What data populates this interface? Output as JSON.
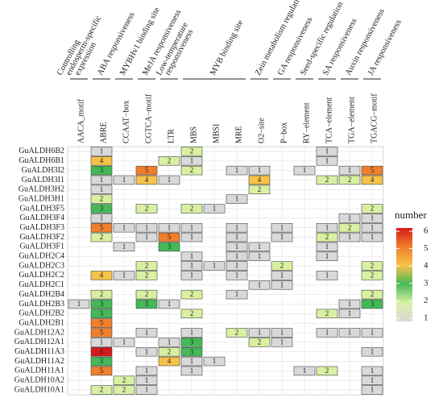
{
  "chart_data": {
    "type": "heatmap",
    "groups": [
      [
        "Controlling",
        "endosperm-specific",
        "expression"
      ],
      [
        "ABA responsiveness"
      ],
      [
        "MYBHv1 binding site"
      ],
      [
        "MeJA responsiveness"
      ],
      [
        "Low-temperature",
        "responsiveness"
      ],
      [
        "MYB binding site"
      ],
      [
        "Zein metabolism regulation"
      ],
      [
        "GA responsiveness"
      ],
      [
        "Seed-specific regulation"
      ],
      [
        "SA responsiveness"
      ],
      [
        "Auxin responsiveness"
      ],
      [
        "JA responsiveness"
      ]
    ],
    "x": [
      "AACA_motif",
      "ABRE",
      "CCAAT−box",
      "CGTCA−motif",
      "LTR",
      "MBS",
      "MBSI",
      "MRE",
      "O2−site",
      "P−box",
      "RY−element",
      "TCA−element",
      "TGA−element",
      "TGACG−motif"
    ],
    "y": [
      "GuALDH6B2",
      "GuALDH6B1",
      "GuALDH3I2",
      "GuALDH3I1",
      "GuALDH3H2",
      "GuALDH3H1",
      "GuALDH3F5",
      "GuALDH3F4",
      "GuALDH3F3",
      "GuALDH3F2",
      "GuALDH3F1",
      "GuALDH2C4",
      "GuALDH2C3",
      "GuALDH2C2",
      "GuALDH2C1",
      "GuALDH2B4",
      "GuALDH2B3",
      "GuALDH2B2",
      "GuALDH2B1",
      "GuALDH12A2",
      "GuALDH12A1",
      "GuALDH11A3",
      "GuALDH11A2",
      "GuALDH11A1",
      "GuALDH10A2",
      "GuALDH10A1"
    ],
    "values": [
      [
        null,
        1,
        null,
        null,
        null,
        2,
        null,
        null,
        null,
        null,
        null,
        1,
        null,
        null
      ],
      [
        null,
        4,
        null,
        null,
        2,
        1,
        null,
        null,
        null,
        null,
        null,
        1,
        null,
        null
      ],
      [
        null,
        3,
        null,
        5,
        null,
        2,
        null,
        1,
        1,
        null,
        1,
        null,
        1,
        5
      ],
      [
        null,
        1,
        1,
        4,
        1,
        null,
        null,
        null,
        4,
        null,
        null,
        2,
        2,
        4
      ],
      [
        null,
        1,
        null,
        null,
        null,
        null,
        null,
        null,
        2,
        null,
        null,
        null,
        null,
        null
      ],
      [
        null,
        2,
        null,
        null,
        null,
        null,
        null,
        1,
        null,
        null,
        null,
        null,
        null,
        null
      ],
      [
        null,
        3,
        null,
        2,
        null,
        2,
        1,
        null,
        null,
        null,
        null,
        null,
        null,
        2
      ],
      [
        null,
        1,
        null,
        null,
        null,
        null,
        null,
        null,
        null,
        null,
        null,
        null,
        1,
        1
      ],
      [
        null,
        5,
        1,
        1,
        1,
        1,
        null,
        1,
        null,
        1,
        null,
        1,
        2,
        1
      ],
      [
        null,
        2,
        null,
        1,
        5,
        1,
        null,
        1,
        null,
        1,
        null,
        2,
        1,
        1
      ],
      [
        null,
        null,
        1,
        null,
        3,
        null,
        null,
        1,
        1,
        null,
        null,
        1,
        null,
        null
      ],
      [
        null,
        null,
        null,
        null,
        null,
        1,
        null,
        1,
        1,
        null,
        null,
        1,
        null,
        null
      ],
      [
        null,
        null,
        null,
        2,
        null,
        1,
        1,
        1,
        null,
        2,
        null,
        null,
        null,
        2
      ],
      [
        null,
        4,
        1,
        2,
        null,
        1,
        null,
        1,
        null,
        1,
        null,
        1,
        null,
        2
      ],
      [
        null,
        null,
        null,
        null,
        null,
        null,
        null,
        null,
        1,
        1,
        null,
        null,
        null,
        null
      ],
      [
        null,
        2,
        null,
        2,
        null,
        2,
        null,
        1,
        null,
        null,
        null,
        null,
        null,
        2
      ],
      [
        1,
        3,
        null,
        3,
        1,
        null,
        null,
        null,
        null,
        null,
        null,
        null,
        1,
        3
      ],
      [
        null,
        3,
        null,
        null,
        null,
        2,
        null,
        null,
        null,
        null,
        null,
        2,
        1,
        null
      ],
      [
        null,
        5,
        null,
        null,
        null,
        null,
        null,
        null,
        null,
        null,
        null,
        null,
        null,
        null
      ],
      [
        null,
        5,
        null,
        1,
        null,
        1,
        null,
        2,
        1,
        1,
        null,
        1,
        1,
        1
      ],
      [
        null,
        1,
        1,
        null,
        1,
        3,
        null,
        null,
        2,
        1,
        null,
        null,
        null,
        null
      ],
      [
        null,
        6,
        null,
        1,
        2,
        3,
        null,
        null,
        null,
        null,
        null,
        null,
        null,
        1
      ],
      [
        null,
        3,
        null,
        null,
        4,
        1,
        1,
        null,
        null,
        null,
        null,
        null,
        null,
        null
      ],
      [
        null,
        5,
        null,
        1,
        null,
        1,
        null,
        null,
        null,
        null,
        1,
        2,
        null,
        1
      ],
      [
        null,
        null,
        2,
        1,
        null,
        null,
        null,
        null,
        null,
        null,
        null,
        null,
        null,
        1
      ],
      [
        null,
        2,
        2,
        1,
        null,
        null,
        null,
        null,
        null,
        null,
        null,
        null,
        null,
        1
      ]
    ],
    "legend_title": "number",
    "clim": [
      1,
      6
    ],
    "cticks": [
      1,
      2,
      3,
      4,
      5,
      6
    ],
    "colors": [
      "#d9d9d9",
      "#d9f0a3",
      "#45b958",
      "#f6c24a",
      "#f07f2c",
      "#d7191c"
    ],
    "grid": true
  }
}
